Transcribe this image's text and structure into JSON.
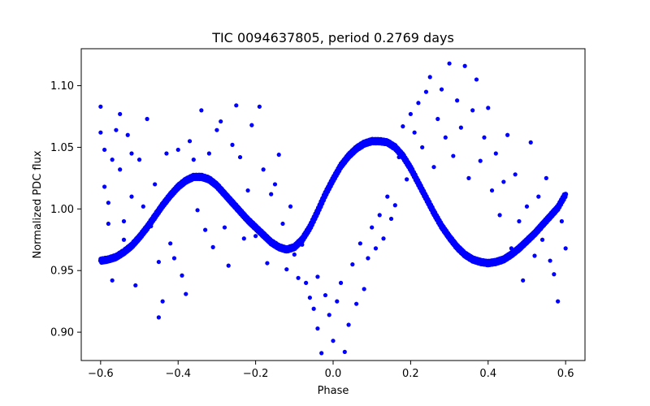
{
  "chart_data": {
    "type": "scatter",
    "title": "TIC 0094637805, period 0.2769 days",
    "xlabel": "Phase",
    "ylabel": "Normalized PDC flux",
    "xlim": [
      -0.65,
      0.65
    ],
    "ylim": [
      0.877,
      1.13
    ],
    "xticks": [
      -0.6,
      -0.4,
      -0.2,
      0.0,
      0.2,
      0.4,
      0.6
    ],
    "xtick_labels": [
      "−0.6",
      "−0.4",
      "−0.2",
      "0.0",
      "0.2",
      "0.4",
      "0.6"
    ],
    "yticks": [
      0.9,
      0.95,
      1.0,
      1.05,
      1.1
    ],
    "ytick_labels": [
      "0.90",
      "0.95",
      "1.00",
      "1.05",
      "1.10"
    ],
    "grid": false,
    "marker_color": "#0000ff",
    "series": [
      {
        "model_curve": [
          [
            -0.6,
            0.958
          ],
          [
            -0.58,
            0.959
          ],
          [
            -0.56,
            0.961
          ],
          [
            -0.54,
            0.965
          ],
          [
            -0.52,
            0.97
          ],
          [
            -0.5,
            0.977
          ],
          [
            -0.48,
            0.985
          ],
          [
            -0.46,
            0.994
          ],
          [
            -0.44,
            1.003
          ],
          [
            -0.42,
            1.011
          ],
          [
            -0.4,
            1.018
          ],
          [
            -0.38,
            1.023
          ],
          [
            -0.36,
            1.026
          ],
          [
            -0.34,
            1.026
          ],
          [
            -0.32,
            1.024
          ],
          [
            -0.3,
            1.019
          ],
          [
            -0.28,
            1.012
          ],
          [
            -0.26,
            1.005
          ],
          [
            -0.24,
            0.998
          ],
          [
            -0.22,
            0.991
          ],
          [
            -0.2,
            0.985
          ],
          [
            -0.18,
            0.979
          ],
          [
            -0.16,
            0.973
          ],
          [
            -0.14,
            0.969
          ],
          [
            -0.12,
            0.967
          ],
          [
            -0.1,
            0.969
          ],
          [
            -0.08,
            0.975
          ],
          [
            -0.06,
            0.985
          ],
          [
            -0.04,
            0.998
          ],
          [
            -0.02,
            1.012
          ],
          [
            0.0,
            1.024
          ],
          [
            0.02,
            1.035
          ],
          [
            0.04,
            1.043
          ],
          [
            0.06,
            1.049
          ],
          [
            0.08,
            1.053
          ],
          [
            0.1,
            1.055
          ],
          [
            0.12,
            1.055
          ],
          [
            0.14,
            1.054
          ],
          [
            0.16,
            1.05
          ],
          [
            0.18,
            1.043
          ],
          [
            0.2,
            1.033
          ],
          [
            0.22,
            1.021
          ],
          [
            0.24,
            1.009
          ],
          [
            0.26,
            0.997
          ],
          [
            0.28,
            0.986
          ],
          [
            0.3,
            0.977
          ],
          [
            0.32,
            0.969
          ],
          [
            0.34,
            0.963
          ],
          [
            0.36,
            0.959
          ],
          [
            0.38,
            0.957
          ],
          [
            0.4,
            0.956
          ],
          [
            0.42,
            0.957
          ],
          [
            0.44,
            0.959
          ],
          [
            0.46,
            0.963
          ],
          [
            0.48,
            0.968
          ],
          [
            0.5,
            0.974
          ],
          [
            0.52,
            0.98
          ],
          [
            0.54,
            0.987
          ],
          [
            0.56,
            0.994
          ],
          [
            0.58,
            1.001
          ],
          [
            0.6,
            1.012
          ]
        ],
        "scatter_points": [
          [
            -0.6,
            1.083
          ],
          [
            -0.6,
            1.062
          ],
          [
            -0.59,
            1.048
          ],
          [
            -0.59,
            1.018
          ],
          [
            -0.58,
            1.005
          ],
          [
            -0.58,
            0.988
          ],
          [
            -0.57,
            1.04
          ],
          [
            -0.57,
            0.942
          ],
          [
            -0.56,
            1.064
          ],
          [
            -0.55,
            1.077
          ],
          [
            -0.55,
            1.032
          ],
          [
            -0.54,
            0.99
          ],
          [
            -0.54,
            0.975
          ],
          [
            -0.53,
            1.06
          ],
          [
            -0.52,
            1.045
          ],
          [
            -0.52,
            1.01
          ],
          [
            -0.51,
            0.938
          ],
          [
            -0.5,
            1.04
          ],
          [
            -0.49,
            1.002
          ],
          [
            -0.48,
            1.073
          ],
          [
            -0.47,
            0.986
          ],
          [
            -0.46,
            1.02
          ],
          [
            -0.45,
            0.957
          ],
          [
            -0.45,
            0.912
          ],
          [
            -0.44,
            0.925
          ],
          [
            -0.43,
            1.045
          ],
          [
            -0.42,
            0.972
          ],
          [
            -0.41,
            0.96
          ],
          [
            -0.4,
            1.048
          ],
          [
            -0.39,
            0.946
          ],
          [
            -0.38,
            0.931
          ],
          [
            -0.37,
            1.055
          ],
          [
            -0.36,
            1.04
          ],
          [
            -0.35,
            0.999
          ],
          [
            -0.34,
            1.08
          ],
          [
            -0.33,
            0.983
          ],
          [
            -0.32,
            1.045
          ],
          [
            -0.31,
            0.969
          ],
          [
            -0.3,
            1.064
          ],
          [
            -0.29,
            1.071
          ],
          [
            -0.28,
            0.985
          ],
          [
            -0.27,
            0.954
          ],
          [
            -0.26,
            1.052
          ],
          [
            -0.25,
            1.084
          ],
          [
            -0.24,
            1.042
          ],
          [
            -0.23,
            0.976
          ],
          [
            -0.22,
            1.015
          ],
          [
            -0.21,
            1.068
          ],
          [
            -0.2,
            0.978
          ],
          [
            -0.19,
            1.083
          ],
          [
            -0.18,
            1.032
          ],
          [
            -0.17,
            0.956
          ],
          [
            -0.16,
            1.012
          ],
          [
            -0.15,
            1.02
          ],
          [
            -0.14,
            1.044
          ],
          [
            -0.13,
            0.988
          ],
          [
            -0.12,
            0.951
          ],
          [
            -0.11,
            1.002
          ],
          [
            -0.1,
            0.963
          ],
          [
            -0.09,
            0.944
          ],
          [
            -0.08,
            0.971
          ],
          [
            -0.07,
            0.94
          ],
          [
            -0.06,
            0.928
          ],
          [
            -0.05,
            0.919
          ],
          [
            -0.04,
            0.903
          ],
          [
            -0.04,
            0.945
          ],
          [
            -0.03,
            0.883
          ],
          [
            -0.02,
            0.93
          ],
          [
            -0.01,
            0.914
          ],
          [
            0.0,
            0.893
          ],
          [
            0.01,
            0.925
          ],
          [
            0.02,
            0.94
          ],
          [
            0.03,
            0.884
          ],
          [
            0.04,
            0.906
          ],
          [
            0.05,
            0.955
          ],
          [
            0.06,
            0.923
          ],
          [
            0.07,
            0.972
          ],
          [
            0.08,
            0.935
          ],
          [
            0.09,
            0.96
          ],
          [
            0.1,
            0.985
          ],
          [
            0.11,
            0.968
          ],
          [
            0.12,
            0.995
          ],
          [
            0.13,
            0.976
          ],
          [
            0.14,
            1.01
          ],
          [
            0.15,
            0.992
          ],
          [
            0.16,
            1.003
          ],
          [
            0.17,
            1.042
          ],
          [
            0.18,
            1.067
          ],
          [
            0.19,
            1.024
          ],
          [
            0.2,
            1.077
          ],
          [
            0.21,
            1.062
          ],
          [
            0.22,
            1.086
          ],
          [
            0.23,
            1.05
          ],
          [
            0.24,
            1.095
          ],
          [
            0.25,
            1.107
          ],
          [
            0.26,
            1.034
          ],
          [
            0.27,
            1.073
          ],
          [
            0.28,
            1.097
          ],
          [
            0.29,
            1.058
          ],
          [
            0.3,
            1.118
          ],
          [
            0.31,
            1.043
          ],
          [
            0.32,
            1.088
          ],
          [
            0.33,
            1.066
          ],
          [
            0.34,
            1.116
          ],
          [
            0.35,
            1.025
          ],
          [
            0.36,
            1.08
          ],
          [
            0.37,
            1.105
          ],
          [
            0.38,
            1.039
          ],
          [
            0.39,
            1.058
          ],
          [
            0.4,
            1.082
          ],
          [
            0.41,
            1.015
          ],
          [
            0.42,
            1.045
          ],
          [
            0.43,
            0.995
          ],
          [
            0.44,
            1.022
          ],
          [
            0.45,
            1.06
          ],
          [
            0.46,
            0.968
          ],
          [
            0.47,
            1.028
          ],
          [
            0.48,
            0.99
          ],
          [
            0.49,
            0.942
          ],
          [
            0.5,
            1.002
          ],
          [
            0.51,
            1.054
          ],
          [
            0.52,
            0.962
          ],
          [
            0.53,
            1.01
          ],
          [
            0.54,
            0.975
          ],
          [
            0.55,
            1.025
          ],
          [
            0.56,
            0.958
          ],
          [
            0.57,
            0.947
          ],
          [
            0.58,
            0.925
          ],
          [
            0.59,
            0.99
          ],
          [
            0.6,
            0.968
          ]
        ]
      }
    ]
  }
}
